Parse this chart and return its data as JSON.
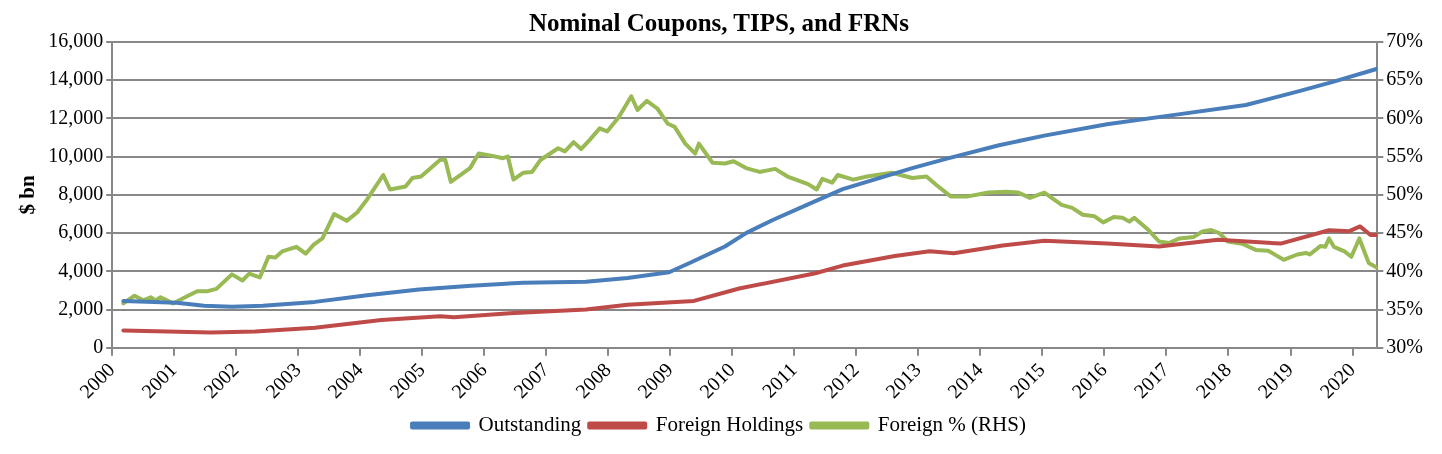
{
  "chart_data": {
    "type": "line",
    "title": "Nominal Coupons, TIPS, and FRNs",
    "ylabel": "$ bn",
    "xlim": [
      2000,
      2020.4
    ],
    "xticks": [
      2000,
      2001,
      2002,
      2003,
      2004,
      2005,
      2006,
      2007,
      2008,
      2009,
      2010,
      2011,
      2012,
      2013,
      2014,
      2015,
      2016,
      2017,
      2018,
      2019,
      2020
    ],
    "ylim": [
      0,
      16000
    ],
    "yticks": [
      {
        "value": 0,
        "label": "0"
      },
      {
        "value": 2000,
        "label": "2,000"
      },
      {
        "value": 4000,
        "label": "4,000"
      },
      {
        "value": 6000,
        "label": "6,000"
      },
      {
        "value": 8000,
        "label": "8,000"
      },
      {
        "value": 10000,
        "label": "10,000"
      },
      {
        "value": 12000,
        "label": "12,000"
      },
      {
        "value": 14000,
        "label": "14,000"
      },
      {
        "value": 16000,
        "label": "16,000"
      }
    ],
    "y2lim": [
      30,
      70
    ],
    "y2ticks": [
      {
        "value": 30,
        "label": "30%"
      },
      {
        "value": 35,
        "label": "35%"
      },
      {
        "value": 40,
        "label": "40%"
      },
      {
        "value": 45,
        "label": "45%"
      },
      {
        "value": 50,
        "label": "50%"
      },
      {
        "value": 55,
        "label": "55%"
      },
      {
        "value": 60,
        "label": "60%"
      },
      {
        "value": 65,
        "label": "65%"
      },
      {
        "value": 70,
        "label": "70%"
      }
    ],
    "grid": "y",
    "legend": "bottom",
    "marker": "none",
    "line_style": "solid",
    "series": [
      {
        "name": "Outstanding",
        "color": "#4a7ebb",
        "x": [
          2000.18,
          2001.04,
          2001.48,
          2001.93,
          2002.43,
          2003.27,
          2004.11,
          2004.95,
          2005.79,
          2006.63,
          2007.64,
          2008.31,
          2008.98,
          2009.32,
          2009.88,
          2010.22,
          2010.66,
          2011.22,
          2011.78,
          2012.34,
          2012.9,
          2013.46,
          2014.3,
          2015.03,
          2016.04,
          2017.16,
          2018.28,
          2019.11,
          2019.67,
          2020.4
        ],
        "values": [
          2450,
          2350,
          2200,
          2150,
          2200,
          2400,
          2750,
          3050,
          3250,
          3400,
          3450,
          3650,
          3950,
          4450,
          5300,
          6000,
          6700,
          7500,
          8300,
          8850,
          9400,
          9900,
          10600,
          11100,
          11700,
          12200,
          12700,
          13400,
          13900,
          14600
        ]
      },
      {
        "name": "Foreign Holdings",
        "color": "#be4b48",
        "x": [
          2000.18,
          2001.59,
          2002.31,
          2003.27,
          2004.34,
          2005.29,
          2005.51,
          2006.41,
          2007.64,
          2008.31,
          2009.38,
          2010.11,
          2011.34,
          2011.78,
          2012.62,
          2013.18,
          2013.57,
          2014.36,
          2015.03,
          2016.04,
          2016.88,
          2017.83,
          2018.84,
          2019.62,
          2019.95,
          2020.12,
          2020.29,
          2020.39
        ],
        "values": [
          900,
          800,
          850,
          1050,
          1450,
          1650,
          1600,
          1800,
          2000,
          2250,
          2450,
          3100,
          3900,
          4300,
          4800,
          5050,
          4950,
          5350,
          5600,
          5450,
          5300,
          5650,
          5450,
          6150,
          6100,
          6350,
          5900,
          5900
        ]
      },
      {
        "name": "Foreign % (RHS)",
        "color": "#98b954",
        "axis": "y2",
        "x": [
          2000.18,
          2000.36,
          2000.5,
          2000.62,
          2000.7,
          2000.78,
          2000.98,
          2001.2,
          2001.37,
          2001.54,
          2001.68,
          2001.93,
          2002.1,
          2002.21,
          2002.38,
          2002.52,
          2002.63,
          2002.74,
          2002.97,
          2003.12,
          2003.25,
          2003.39,
          2003.58,
          2003.78,
          2003.95,
          2004.11,
          2004.37,
          2004.48,
          2004.73,
          2004.84,
          2004.98,
          2005.29,
          2005.37,
          2005.46,
          2005.77,
          2005.91,
          2006.13,
          2006.3,
          2006.38,
          2006.47,
          2006.63,
          2006.77,
          2006.91,
          2007.19,
          2007.3,
          2007.44,
          2007.56,
          2007.7,
          2007.86,
          2007.98,
          2008.17,
          2008.37,
          2008.47,
          2008.62,
          2008.79,
          2008.96,
          2009.07,
          2009.24,
          2009.4,
          2009.46,
          2009.68,
          2009.88,
          2010.02,
          2010.22,
          2010.44,
          2010.69,
          2010.89,
          2011.22,
          2011.36,
          2011.45,
          2011.61,
          2011.7,
          2011.95,
          2012.17,
          2012.57,
          2012.9,
          2013.13,
          2013.29,
          2013.52,
          2013.8,
          2014.13,
          2014.41,
          2014.61,
          2014.8,
          2015.03,
          2015.31,
          2015.48,
          2015.65,
          2015.84,
          2015.98,
          2016.15,
          2016.29,
          2016.4,
          2016.48,
          2016.71,
          2016.88,
          2017.04,
          2017.21,
          2017.44,
          2017.58,
          2017.72,
          2017.85,
          2017.99,
          2018.22,
          2018.44,
          2018.64,
          2018.89,
          2019.11,
          2019.25,
          2019.31,
          2019.48,
          2019.56,
          2019.62,
          2019.7,
          2019.87,
          2019.98,
          2020.11,
          2020.26,
          2020.39
        ],
        "values": [
          35.8,
          36.8,
          36.2,
          36.6,
          36.2,
          36.6,
          35.8,
          36.7,
          37.4,
          37.4,
          37.7,
          39.6,
          38.8,
          39.7,
          39.2,
          41.9,
          41.8,
          42.6,
          43.2,
          42.3,
          43.5,
          44.3,
          47.5,
          46.6,
          47.7,
          49.4,
          52.6,
          50.7,
          51.1,
          52.2,
          52.4,
          54.6,
          54.6,
          51.7,
          53.5,
          55.4,
          55.1,
          54.8,
          55.0,
          52.0,
          52.9,
          53.0,
          54.6,
          56.1,
          55.7,
          56.9,
          56.0,
          57.2,
          58.7,
          58.3,
          60.2,
          62.9,
          61.1,
          62.3,
          61.3,
          59.3,
          58.9,
          56.7,
          55.4,
          56.7,
          54.2,
          54.1,
          54.4,
          53.5,
          53.0,
          53.4,
          52.4,
          51.4,
          50.7,
          52.1,
          51.6,
          52.6,
          52.0,
          52.4,
          52.9,
          52.2,
          52.4,
          51.3,
          49.8,
          49.8,
          50.3,
          50.4,
          50.3,
          49.6,
          50.3,
          48.7,
          48.3,
          47.4,
          47.2,
          46.4,
          47.1,
          47.0,
          46.5,
          47.0,
          45.4,
          43.9,
          43.7,
          44.3,
          44.5,
          45.2,
          45.4,
          45.0,
          43.9,
          43.6,
          42.8,
          42.7,
          41.5,
          42.2,
          42.4,
          42.2,
          43.3,
          43.2,
          44.3,
          43.2,
          42.6,
          41.9,
          44.3,
          41.1,
          40.5
        ]
      }
    ]
  }
}
